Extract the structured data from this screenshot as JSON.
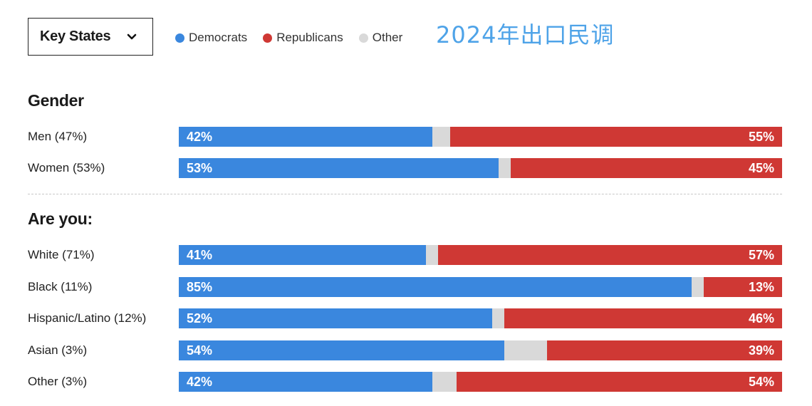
{
  "selector": {
    "label": "Key States",
    "icon": "chevron-down-icon"
  },
  "legend": [
    {
      "label": "Democrats",
      "color": "#3a87de"
    },
    {
      "label": "Republicans",
      "color": "#cf3834"
    },
    {
      "label": "Other",
      "color": "#d9d9d9"
    }
  ],
  "title": "2024年出口民调",
  "chart_data": {
    "type": "bar",
    "stacked": true,
    "orientation": "horizontal",
    "title": "2024年出口民调",
    "series_names": [
      "Democrats",
      "Other",
      "Republicans"
    ],
    "colors": {
      "dem": "#3a87de",
      "oth": "#d9d9d9",
      "rep": "#cf3834"
    },
    "groups": [
      {
        "heading": "Gender",
        "rows": [
          {
            "label": "Men (47%)",
            "dem": 42,
            "rep": 55,
            "dem_label": "42%",
            "rep_label": "55%"
          },
          {
            "label": "Women (53%)",
            "dem": 53,
            "rep": 45,
            "dem_label": "53%",
            "rep_label": "45%"
          }
        ]
      },
      {
        "heading": "Are you:",
        "rows": [
          {
            "label": "White (71%)",
            "dem": 41,
            "rep": 57,
            "dem_label": "41%",
            "rep_label": "57%"
          },
          {
            "label": "Black (11%)",
            "dem": 85,
            "rep": 13,
            "dem_label": "85%",
            "rep_label": "13%"
          },
          {
            "label": "Hispanic/Latino (12%)",
            "dem": 52,
            "rep": 46,
            "dem_label": "52%",
            "rep_label": "46%"
          },
          {
            "label": "Asian (3%)",
            "dem": 54,
            "rep": 39,
            "dem_label": "54%",
            "rep_label": "39%"
          },
          {
            "label": "Other (3%)",
            "dem": 42,
            "rep": 54,
            "dem_label": "42%",
            "rep_label": "54%"
          }
        ]
      }
    ]
  }
}
